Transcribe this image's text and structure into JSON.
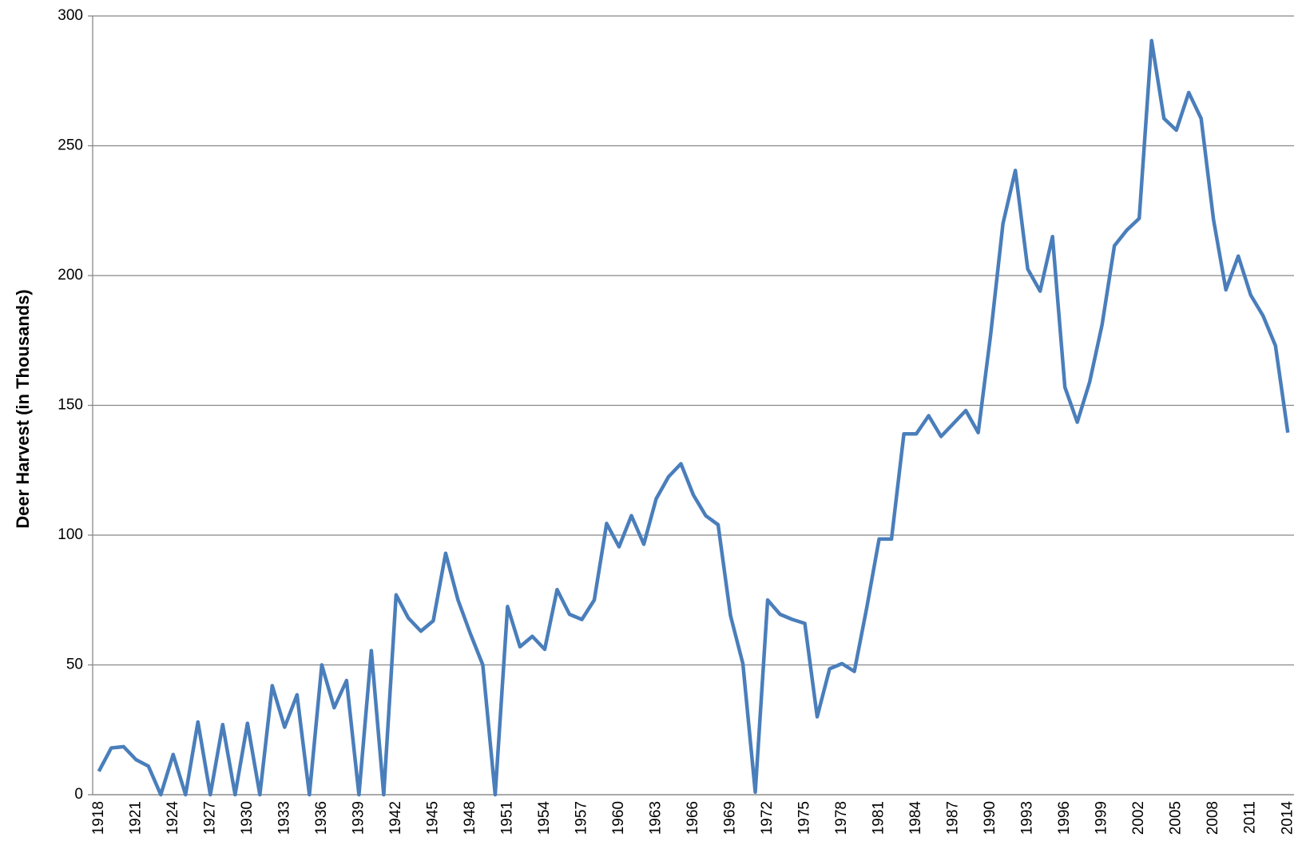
{
  "chart_data": {
    "type": "line",
    "y_label": "Deer Harvest (in Thousands)",
    "categories": [
      "1918",
      null,
      null,
      "1921",
      null,
      null,
      "1924",
      null,
      null,
      "1927",
      null,
      null,
      "1930",
      null,
      null,
      "1933",
      null,
      null,
      "1936",
      null,
      null,
      "1939",
      null,
      null,
      "1942",
      null,
      null,
      "1945",
      null,
      null,
      "1948",
      null,
      null,
      "1951",
      null,
      null,
      "1954",
      null,
      null,
      "1957",
      null,
      null,
      "1960",
      null,
      null,
      "1963",
      null,
      null,
      "1966",
      null,
      null,
      "1969",
      null,
      null,
      "1972",
      null,
      null,
      "1975",
      null,
      null,
      "1978",
      null,
      null,
      "1981",
      null,
      null,
      "1984",
      null,
      null,
      "1987",
      null,
      null,
      "1990",
      null,
      null,
      "1993",
      null,
      null,
      "1996",
      null,
      null,
      "1999",
      null,
      null,
      "2002",
      null,
      null,
      "2005",
      null,
      null,
      "2008",
      null,
      null,
      "2011",
      null,
      null,
      "2014"
    ],
    "values": [
      9,
      18,
      18.5,
      13.5,
      11,
      0,
      15.5,
      0,
      28,
      0,
      27,
      0,
      27.5,
      0,
      42,
      26,
      38.5,
      0,
      50,
      33.5,
      44,
      0,
      55.5,
      0,
      77,
      68,
      63,
      67,
      93,
      75,
      62,
      50,
      0,
      72.5,
      57,
      61,
      56,
      79,
      69.5,
      67.5,
      75,
      104.5,
      95.5,
      107.5,
      96.5,
      114,
      122.5,
      127.5,
      115.5,
      107.5,
      104,
      69,
      50.5,
      1,
      75,
      69.5,
      67.5,
      66,
      30,
      48.5,
      50.5,
      47.5,
      72,
      98.5,
      98.5,
      139,
      139,
      146,
      138,
      143,
      148,
      139.5,
      177,
      220,
      240.5,
      202.5,
      194,
      215,
      157,
      143.5,
      159,
      181,
      211.5,
      217.5,
      222,
      290.5,
      260.5,
      256,
      270.5,
      260.5,
      221.5,
      194.5,
      207.5,
      192.5,
      184.5,
      173,
      139.5
    ],
    "color": "#4a7ebb",
    "ylim": [
      0,
      300
    ],
    "yticks": [
      0,
      50,
      100,
      150,
      200,
      250,
      300
    ],
    "grid": true
  }
}
